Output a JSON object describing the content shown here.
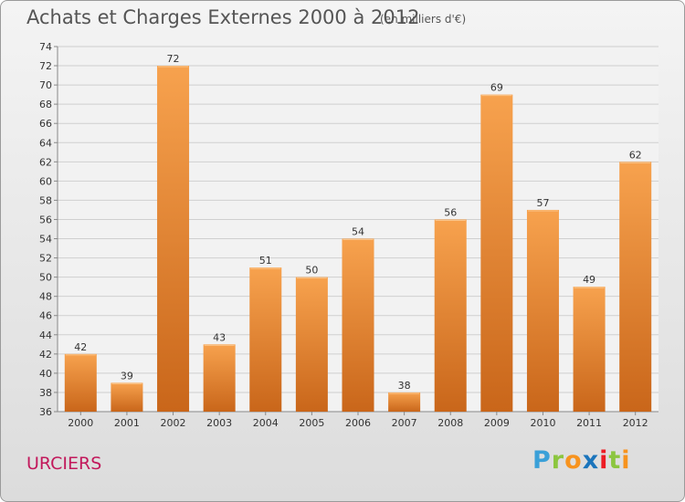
{
  "header": {
    "title": "Achats et Charges Externes 2000 à 2012",
    "subtitle": "(en milliers d'€)"
  },
  "footer": {
    "place": "URCIERS",
    "logo_letters": [
      "P",
      "r",
      "o",
      "x",
      "i",
      "t",
      "i"
    ],
    "logo_colors": [
      "#3aa0d8",
      "#8cc63f",
      "#f7931e",
      "#1b75bc",
      "#ed1c24",
      "#8cc63f",
      "#f7931e"
    ]
  },
  "colors": {
    "bar_top": "#f7a24e",
    "bar_bottom": "#c9661a",
    "grid": "#cfcfcf",
    "axis": "#888888"
  },
  "chart_data": {
    "type": "bar",
    "categories": [
      "2000",
      "2001",
      "2002",
      "2003",
      "2004",
      "2005",
      "2006",
      "2007",
      "2008",
      "2009",
      "2010",
      "2011",
      "2012"
    ],
    "values": [
      42,
      39,
      72,
      43,
      51,
      50,
      54,
      38,
      56,
      69,
      57,
      49,
      62
    ],
    "data_labels": [
      "42",
      "39",
      "72",
      "43",
      "51",
      "50",
      "54",
      "38",
      "56",
      "69",
      "57",
      "49",
      "62"
    ],
    "yticks": [
      "36",
      "38",
      "40",
      "42",
      "44",
      "46",
      "48",
      "50",
      "52",
      "54",
      "56",
      "58",
      "60",
      "62",
      "64",
      "66",
      "68",
      "70",
      "72",
      "74"
    ],
    "ylim": [
      36,
      74
    ],
    "grid": true
  }
}
